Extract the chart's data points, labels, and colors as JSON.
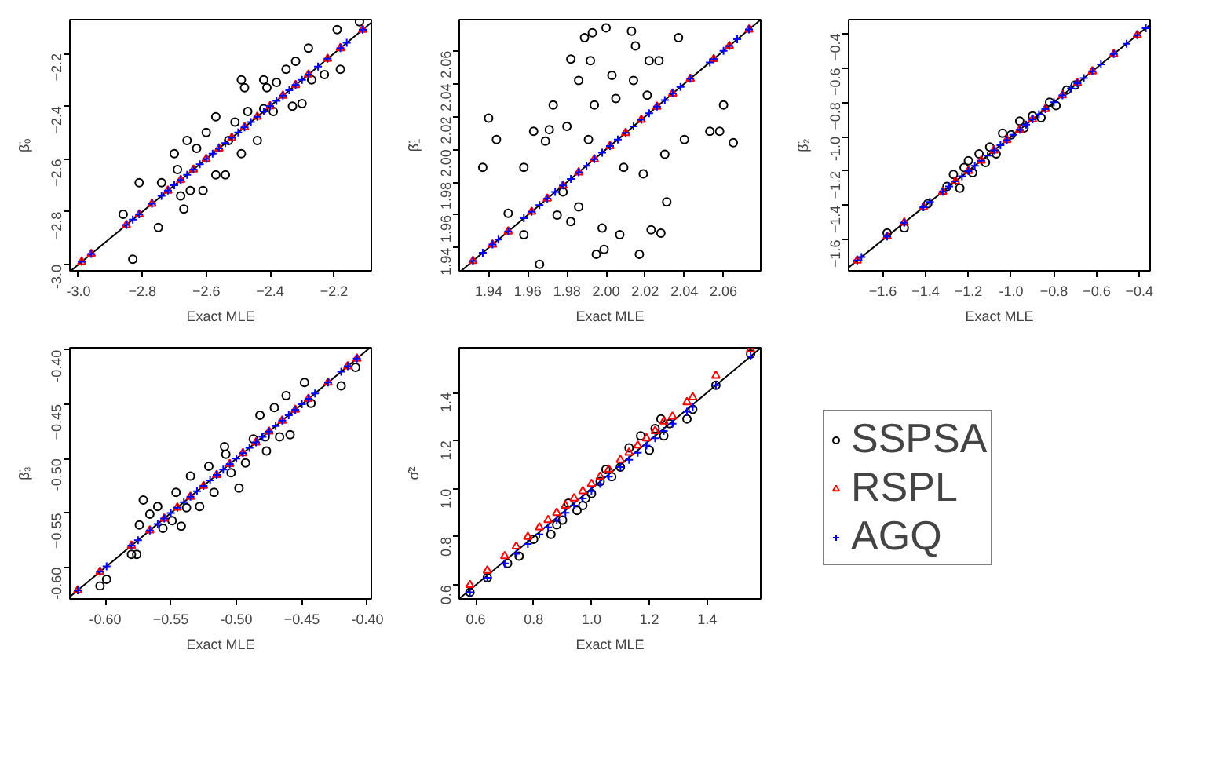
{
  "chart_data": [
    {
      "type": "scatter",
      "xlabel": "Exact MLE",
      "ylabel": "β̈₀",
      "xlim": [
        -3.027,
        -2.083
      ],
      "ylim": [
        -3.024,
        -2.072
      ],
      "xticks": [
        {
          "value": -3.0,
          "label": "-3.0"
        },
        -2.8,
        -2.6,
        -2.4,
        -2.2
      ],
      "yticks": [
        {
          "value": -3.0,
          "label": "-3.0"
        },
        -2.8,
        -2.6,
        -2.4,
        -2.2
      ],
      "series": [
        {
          "type": "line",
          "color": "#000000",
          "x": [
            -3.024,
            -2.083
          ],
          "values": [
            -3.024,
            -2.083
          ],
          "marker": "none"
        },
        {
          "color": "#000000",
          "marker": "circle",
          "x": [
            -2.86,
            -2.83,
            -2.81,
            -2.75,
            -2.74,
            -2.7,
            -2.69,
            -2.68,
            -2.67,
            -2.65,
            -2.63,
            -2.61,
            -2.6,
            -2.57,
            -2.57,
            -2.54,
            -2.53,
            -2.51,
            -2.49,
            -2.49,
            -2.48,
            -2.47,
            -2.44,
            -2.42,
            -2.41,
            -2.39,
            -2.38,
            -2.35,
            -2.33,
            -2.32,
            -2.3,
            -2.28,
            -2.27,
            -2.23,
            -2.19,
            -2.18,
            -2.12,
            -2.66,
            -2.42
          ],
          "values": [
            -2.81,
            -2.98,
            -2.69,
            -2.86,
            -2.69,
            -2.58,
            -2.64,
            -2.74,
            -2.79,
            -2.72,
            -2.56,
            -2.72,
            -2.5,
            -2.44,
            -2.66,
            -2.66,
            -2.53,
            -2.46,
            -2.58,
            -2.3,
            -2.33,
            -2.42,
            -2.53,
            -2.3,
            -2.33,
            -2.42,
            -2.31,
            -2.26,
            -2.4,
            -2.23,
            -2.39,
            -2.18,
            -2.3,
            -2.28,
            -2.11,
            -2.26,
            -2.08,
            -2.53,
            -2.41
          ]
        },
        {
          "color": "#ff0000",
          "marker": "triangle",
          "x": [
            -2.99,
            -2.96,
            -2.85,
            -2.81,
            -2.77,
            -2.72,
            -2.68,
            -2.64,
            -2.6,
            -2.56,
            -2.52,
            -2.48,
            -2.44,
            -2.4,
            -2.36,
            -2.32,
            -2.28,
            -2.22,
            -2.18,
            -2.11
          ],
          "values": [
            -2.99,
            -2.96,
            -2.85,
            -2.81,
            -2.77,
            -2.72,
            -2.68,
            -2.64,
            -2.6,
            -2.56,
            -2.52,
            -2.48,
            -2.44,
            -2.4,
            -2.36,
            -2.32,
            -2.28,
            -2.22,
            -2.18,
            -2.11
          ]
        },
        {
          "color": "#0000ff",
          "marker": "cross",
          "x": [
            -2.99,
            -2.96,
            -2.85,
            -2.83,
            -2.81,
            -2.77,
            -2.74,
            -2.72,
            -2.7,
            -2.68,
            -2.66,
            -2.64,
            -2.62,
            -2.6,
            -2.58,
            -2.56,
            -2.54,
            -2.52,
            -2.5,
            -2.48,
            -2.46,
            -2.44,
            -2.42,
            -2.4,
            -2.38,
            -2.36,
            -2.34,
            -2.32,
            -2.3,
            -2.28,
            -2.25,
            -2.22,
            -2.18,
            -2.16,
            -2.11
          ],
          "values": [
            -2.99,
            -2.96,
            -2.85,
            -2.83,
            -2.81,
            -2.77,
            -2.74,
            -2.72,
            -2.7,
            -2.68,
            -2.66,
            -2.64,
            -2.62,
            -2.6,
            -2.58,
            -2.56,
            -2.54,
            -2.52,
            -2.5,
            -2.48,
            -2.46,
            -2.44,
            -2.42,
            -2.4,
            -2.38,
            -2.36,
            -2.34,
            -2.32,
            -2.3,
            -2.28,
            -2.25,
            -2.22,
            -2.18,
            -2.16,
            -2.11
          ]
        }
      ]
    },
    {
      "type": "scatter",
      "xlabel": "Exact MLE",
      "ylabel": "β̈₁",
      "xlim": [
        1.925,
        2.079
      ],
      "ylim": [
        1.926,
        2.079
      ],
      "xticks": [
        1.94,
        1.96,
        1.98,
        {
          "value": 2.0,
          "label": "2.00"
        },
        2.02,
        2.04,
        2.06
      ],
      "yticks": [
        1.94,
        1.96,
        1.98,
        {
          "value": 2.0,
          "label": "2.00"
        },
        2.02,
        2.04,
        2.06
      ],
      "series": [
        {
          "type": "line",
          "color": "#000000",
          "x": [
            1.926,
            2.079
          ],
          "values": [
            1.926,
            2.079
          ],
          "marker": "none"
        },
        {
          "color": "#000000",
          "marker": "circle",
          "x": [
            1.94,
            1.937,
            1.944,
            1.95,
            1.958,
            1.958,
            1.963,
            1.966,
            1.969,
            1.971,
            1.973,
            1.975,
            1.978,
            1.98,
            1.982,
            1.982,
            1.986,
            1.986,
            1.989,
            1.991,
            1.992,
            1.993,
            1.994,
            1.995,
            1.998,
            2.0,
            1.999,
            2.003,
            2.005,
            2.007,
            2.009,
            2.013,
            2.014,
            2.015,
            2.017,
            2.019,
            2.021,
            2.022,
            2.023,
            2.027,
            2.028,
            2.03,
            2.031,
            2.037,
            2.04,
            2.053,
            2.058,
            2.06,
            2.065
          ],
          "values": [
            2.019,
            1.989,
            2.006,
            1.961,
            1.989,
            1.948,
            2.011,
            1.93,
            2.005,
            2.012,
            2.027,
            1.96,
            1.974,
            2.014,
            2.055,
            1.956,
            2.042,
            1.965,
            2.068,
            2.006,
            2.054,
            2.071,
            2.027,
            1.936,
            1.952,
            2.074,
            1.939,
            2.045,
            2.031,
            1.948,
            1.989,
            2.072,
            2.042,
            2.063,
            1.936,
            1.985,
            2.033,
            2.054,
            1.951,
            2.054,
            1.949,
            1.997,
            1.968,
            2.068,
            2.006,
            2.011,
            2.011,
            2.027,
            2.004
          ]
        },
        {
          "color": "#ff0000",
          "marker": "triangle",
          "x": [
            1.932,
            1.942,
            1.95,
            1.962,
            1.97,
            1.978,
            1.986,
            1.994,
            2.002,
            2.01,
            2.018,
            2.026,
            2.034,
            2.043,
            2.055,
            2.063,
            2.073
          ],
          "values": [
            1.932,
            1.942,
            1.95,
            1.962,
            1.97,
            1.978,
            1.986,
            1.994,
            2.002,
            2.01,
            2.018,
            2.026,
            2.034,
            2.043,
            2.055,
            2.063,
            2.073
          ]
        },
        {
          "color": "#0000ff",
          "marker": "cross",
          "x": [
            1.932,
            1.937,
            1.942,
            1.945,
            1.95,
            1.958,
            1.962,
            1.966,
            1.97,
            1.974,
            1.978,
            1.982,
            1.986,
            1.99,
            1.994,
            1.998,
            2.002,
            2.006,
            2.01,
            2.014,
            2.018,
            2.022,
            2.026,
            2.03,
            2.034,
            2.038,
            2.043,
            2.053,
            2.055,
            2.06,
            2.063,
            2.067,
            2.073
          ],
          "values": [
            1.932,
            1.937,
            1.942,
            1.945,
            1.95,
            1.958,
            1.962,
            1.966,
            1.97,
            1.974,
            1.978,
            1.982,
            1.986,
            1.99,
            1.994,
            1.998,
            2.002,
            2.006,
            2.01,
            2.014,
            2.018,
            2.022,
            2.026,
            2.03,
            2.034,
            2.038,
            2.043,
            2.053,
            2.055,
            2.06,
            2.063,
            2.067,
            2.073
          ]
        }
      ]
    },
    {
      "type": "scatter",
      "xlabel": "Exact MLE",
      "ylabel": "β̈₂",
      "xlim": [
        -1.76,
        -0.35
      ],
      "ylim": [
        -1.78,
        -0.32
      ],
      "xticks": [
        -1.6,
        -1.4,
        -1.2,
        {
          "value": -1.0,
          "label": "-1.0"
        },
        -0.8,
        -0.6,
        -0.4
      ],
      "yticks": [
        -1.6,
        -1.4,
        -1.2,
        {
          "value": -1.0,
          "label": "-1.0"
        },
        -0.8,
        -0.6,
        -0.4
      ],
      "series": [
        {
          "type": "line",
          "color": "#000000",
          "x": [
            -1.76,
            -0.35
          ],
          "values": [
            -1.76,
            -0.35
          ],
          "marker": "none"
        },
        {
          "color": "#000000",
          "marker": "circle",
          "x": [
            -1.58,
            -1.5,
            -1.39,
            -1.3,
            -1.27,
            -1.24,
            -1.2,
            -1.18,
            -1.15,
            -1.1,
            -1.07,
            -1.04,
            -1.0,
            -0.96,
            -0.94,
            -0.9,
            -0.86,
            -0.82,
            -0.79,
            -0.74,
            -0.7,
            -1.12,
            -1.22
          ],
          "values": [
            -1.56,
            -1.53,
            -1.39,
            -1.29,
            -1.22,
            -1.3,
            -1.14,
            -1.21,
            -1.1,
            -1.06,
            -1.1,
            -0.98,
            -0.99,
            -0.91,
            -0.95,
            -0.88,
            -0.89,
            -0.8,
            -0.82,
            -0.73,
            -0.7,
            -1.15,
            -1.18
          ]
        },
        {
          "color": "#ff0000",
          "marker": "triangle",
          "x": [
            -1.72,
            -1.58,
            -1.5,
            -1.41,
            -1.32,
            -1.26,
            -1.2,
            -1.14,
            -1.08,
            -1.02,
            -0.96,
            -0.9,
            -0.84,
            -0.76,
            -0.69,
            -0.62,
            -0.52,
            -0.41
          ],
          "values": [
            -1.72,
            -1.58,
            -1.5,
            -1.41,
            -1.32,
            -1.26,
            -1.2,
            -1.14,
            -1.08,
            -1.02,
            -0.96,
            -0.9,
            -0.84,
            -0.76,
            -0.69,
            -0.62,
            -0.52,
            -0.41
          ]
        },
        {
          "color": "#0000ff",
          "marker": "cross",
          "x": [
            -1.72,
            -1.7,
            -1.58,
            -1.5,
            -1.41,
            -1.38,
            -1.32,
            -1.29,
            -1.26,
            -1.23,
            -1.2,
            -1.17,
            -1.14,
            -1.11,
            -1.08,
            -1.05,
            -1.02,
            -0.99,
            -0.96,
            -0.93,
            -0.9,
            -0.87,
            -0.84,
            -0.8,
            -0.76,
            -0.72,
            -0.69,
            -0.66,
            -0.62,
            -0.58,
            -0.52,
            -0.46,
            -0.41,
            -0.37
          ],
          "values": [
            -1.72,
            -1.7,
            -1.58,
            -1.5,
            -1.41,
            -1.38,
            -1.32,
            -1.29,
            -1.26,
            -1.23,
            -1.2,
            -1.17,
            -1.14,
            -1.11,
            -1.08,
            -1.05,
            -1.02,
            -0.99,
            -0.96,
            -0.93,
            -0.9,
            -0.87,
            -0.84,
            -0.8,
            -0.76,
            -0.72,
            -0.69,
            -0.66,
            -0.62,
            -0.58,
            -0.52,
            -0.46,
            -0.41,
            -0.37
          ]
        }
      ]
    },
    {
      "type": "scatter",
      "xlabel": "Exact MLE",
      "ylabel": "β̈₃",
      "xlim": [
        -0.627,
        -0.397
      ],
      "ylim": [
        -0.629,
        -0.398
      ],
      "xticks": [
        {
          "value": -0.6,
          "label": "-0.60"
        },
        -0.55,
        {
          "value": -0.5,
          "label": "-0.50"
        },
        -0.45,
        {
          "value": -0.4,
          "label": "-0.40"
        }
      ],
      "yticks": [
        {
          "value": -0.6,
          "label": "-0.60"
        },
        -0.55,
        {
          "value": -0.5,
          "label": "-0.50"
        },
        -0.45,
        {
          "value": -0.4,
          "label": "-0.40"
        }
      ],
      "series": [
        {
          "type": "line",
          "color": "#000000",
          "x": [
            -0.627,
            -0.398
          ],
          "values": [
            -0.627,
            -0.398
          ],
          "marker": "none"
        },
        {
          "color": "#000000",
          "marker": "circle",
          "x": [
            -0.604,
            -0.599,
            -0.58,
            -0.576,
            -0.574,
            -0.571,
            -0.566,
            -0.56,
            -0.556,
            -0.549,
            -0.546,
            -0.542,
            -0.538,
            -0.535,
            -0.528,
            -0.521,
            -0.517,
            -0.509,
            -0.504,
            -0.498,
            -0.493,
            -0.487,
            -0.482,
            -0.478,
            -0.471,
            -0.467,
            -0.462,
            -0.459,
            -0.448,
            -0.443,
            -0.42,
            -0.409,
            -0.477,
            -0.508
          ],
          "values": [
            -0.617,
            -0.611,
            -0.588,
            -0.588,
            -0.561,
            -0.538,
            -0.551,
            -0.544,
            -0.564,
            -0.557,
            -0.531,
            -0.562,
            -0.545,
            -0.516,
            -0.544,
            -0.507,
            -0.531,
            -0.489,
            -0.513,
            -0.527,
            -0.504,
            -0.482,
            -0.46,
            -0.48,
            -0.453,
            -0.48,
            -0.442,
            -0.478,
            -0.43,
            -0.449,
            -0.433,
            -0.416,
            -0.493,
            -0.496
          ]
        },
        {
          "color": "#ff0000",
          "marker": "triangle",
          "x": [
            -0.621,
            -0.604,
            -0.58,
            -0.566,
            -0.555,
            -0.545,
            -0.535,
            -0.525,
            -0.515,
            -0.505,
            -0.495,
            -0.485,
            -0.475,
            -0.465,
            -0.455,
            -0.445,
            -0.43,
            -0.415,
            -0.408
          ],
          "values": [
            -0.621,
            -0.604,
            -0.58,
            -0.566,
            -0.555,
            -0.545,
            -0.535,
            -0.525,
            -0.515,
            -0.505,
            -0.495,
            -0.485,
            -0.475,
            -0.465,
            -0.455,
            -0.445,
            -0.43,
            -0.415,
            -0.408
          ]
        },
        {
          "color": "#0000ff",
          "marker": "cross",
          "x": [
            -0.621,
            -0.604,
            -0.599,
            -0.58,
            -0.575,
            -0.566,
            -0.56,
            -0.555,
            -0.55,
            -0.545,
            -0.54,
            -0.535,
            -0.53,
            -0.525,
            -0.52,
            -0.515,
            -0.51,
            -0.505,
            -0.5,
            -0.495,
            -0.49,
            -0.485,
            -0.48,
            -0.475,
            -0.47,
            -0.465,
            -0.46,
            -0.455,
            -0.45,
            -0.445,
            -0.44,
            -0.43,
            -0.42,
            -0.415,
            -0.408
          ],
          "values": [
            -0.621,
            -0.604,
            -0.599,
            -0.58,
            -0.575,
            -0.566,
            -0.56,
            -0.555,
            -0.55,
            -0.545,
            -0.54,
            -0.535,
            -0.53,
            -0.525,
            -0.52,
            -0.515,
            -0.51,
            -0.505,
            -0.5,
            -0.495,
            -0.49,
            -0.485,
            -0.48,
            -0.475,
            -0.47,
            -0.465,
            -0.46,
            -0.455,
            -0.45,
            -0.445,
            -0.44,
            -0.43,
            -0.42,
            -0.415,
            -0.408
          ]
        }
      ]
    },
    {
      "type": "scatter",
      "xlabel": "Exact MLE",
      "ylabel": "σ̂²",
      "xlim": [
        0.543,
        1.585
      ],
      "ylim": [
        0.542,
        1.586
      ],
      "legend": "right",
      "xticks": [
        0.6,
        0.8,
        {
          "value": 1.0,
          "label": "1.0"
        },
        1.2,
        1.4
      ],
      "yticks": [
        0.6,
        0.8,
        {
          "value": 1.0,
          "label": "1.0"
        },
        1.2,
        1.4
      ],
      "series": [
        {
          "type": "line",
          "color": "#000000",
          "x": [
            0.543,
            1.585
          ],
          "values": [
            0.543,
            1.585
          ],
          "marker": "none"
        },
        {
          "name": "SSPSA",
          "color": "#000000",
          "marker": "circle",
          "x": [
            0.58,
            0.64,
            0.71,
            0.75,
            0.8,
            0.86,
            0.88,
            0.9,
            0.92,
            0.95,
            0.97,
            0.98,
            1.0,
            1.03,
            1.05,
            1.07,
            1.1,
            1.13,
            1.17,
            1.2,
            1.22,
            1.24,
            1.25,
            1.27,
            1.33,
            1.35,
            1.43,
            1.55
          ],
          "values": [
            0.57,
            0.63,
            0.69,
            0.72,
            0.79,
            0.81,
            0.85,
            0.87,
            0.94,
            0.91,
            0.93,
            0.96,
            0.98,
            1.03,
            1.08,
            1.05,
            1.09,
            1.17,
            1.22,
            1.16,
            1.25,
            1.29,
            1.22,
            1.27,
            1.29,
            1.33,
            1.43,
            1.56
          ]
        },
        {
          "name": "RSPL",
          "color": "#ff0000",
          "marker": "triangle",
          "x": [
            0.58,
            0.64,
            0.7,
            0.74,
            0.78,
            0.82,
            0.85,
            0.88,
            0.91,
            0.94,
            0.97,
            1.0,
            1.03,
            1.06,
            1.1,
            1.13,
            1.16,
            1.19,
            1.22,
            1.25,
            1.28,
            1.33,
            1.35,
            1.43,
            1.55
          ],
          "values": [
            0.6,
            0.66,
            0.72,
            0.76,
            0.8,
            0.84,
            0.87,
            0.9,
            0.93,
            0.96,
            0.99,
            1.02,
            1.05,
            1.08,
            1.12,
            1.15,
            1.18,
            1.21,
            1.24,
            1.28,
            1.3,
            1.36,
            1.38,
            1.47,
            1.58
          ]
        },
        {
          "name": "AGQ",
          "color": "#0000ff",
          "marker": "cross",
          "x": [
            0.58,
            0.64,
            0.7,
            0.74,
            0.78,
            0.82,
            0.85,
            0.88,
            0.91,
            0.94,
            0.97,
            1.0,
            1.03,
            1.06,
            1.1,
            1.13,
            1.16,
            1.19,
            1.22,
            1.25,
            1.28,
            1.33,
            1.35,
            1.43,
            1.55
          ],
          "values": [
            0.57,
            0.63,
            0.69,
            0.73,
            0.77,
            0.81,
            0.84,
            0.87,
            0.9,
            0.93,
            0.96,
            0.99,
            1.02,
            1.05,
            1.09,
            1.12,
            1.15,
            1.18,
            1.21,
            1.24,
            1.27,
            1.32,
            1.34,
            1.43,
            1.55
          ]
        }
      ]
    }
  ]
}
